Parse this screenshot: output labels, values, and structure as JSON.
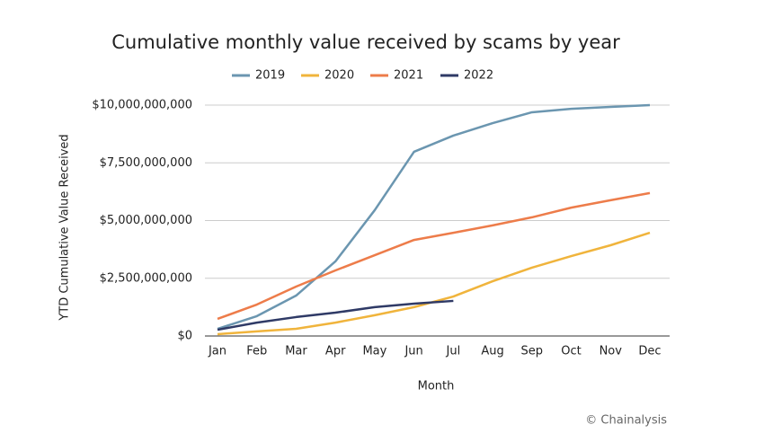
{
  "chart_data": {
    "type": "line",
    "title": "Cumulative monthly value received by scams by year",
    "x_label": "Month",
    "y_label": "YTD Cumulative Value Received",
    "source": "© Chainalysis",
    "categories": [
      "Jan",
      "Feb",
      "Mar",
      "Apr",
      "May",
      "Jun",
      "Jul",
      "Aug",
      "Sep",
      "Oct",
      "Nov",
      "Dec"
    ],
    "series": [
      {
        "name": "2019",
        "color": "#6b96b0",
        "values": [
          310000000,
          860000000,
          1750000000,
          3230000000,
          5450000000,
          7980000000,
          8680000000,
          9220000000,
          9690000000,
          9840000000,
          9920000000,
          10000000000
        ]
      },
      {
        "name": "2020",
        "color": "#f0b43c",
        "values": [
          80000000,
          200000000,
          310000000,
          580000000,
          900000000,
          1250000000,
          1710000000,
          2370000000,
          2960000000,
          3460000000,
          3930000000,
          4470000000
        ]
      },
      {
        "name": "2021",
        "color": "#ed7c4a",
        "values": [
          740000000,
          1360000000,
          2140000000,
          2840000000,
          3500000000,
          4160000000,
          4470000000,
          4790000000,
          5140000000,
          5560000000,
          5880000000,
          6190000000
        ]
      },
      {
        "name": "2022",
        "color": "#2f3a66",
        "values": [
          270000000,
          580000000,
          820000000,
          1010000000,
          1250000000,
          1400000000,
          1520000000,
          null,
          null,
          null,
          null,
          null
        ]
      }
    ],
    "ylim": [
      0,
      10000000000
    ],
    "yticks": [
      {
        "value": 0,
        "label": "$0"
      },
      {
        "value": 2500000000,
        "label": "$2,500,000,000"
      },
      {
        "value": 5000000000,
        "label": "$5,000,000,000"
      },
      {
        "value": 7500000000,
        "label": "$7,500,000,000"
      },
      {
        "value": 10000000000,
        "label": "$10,000,000,000"
      }
    ],
    "grid": true,
    "legend": "top"
  }
}
